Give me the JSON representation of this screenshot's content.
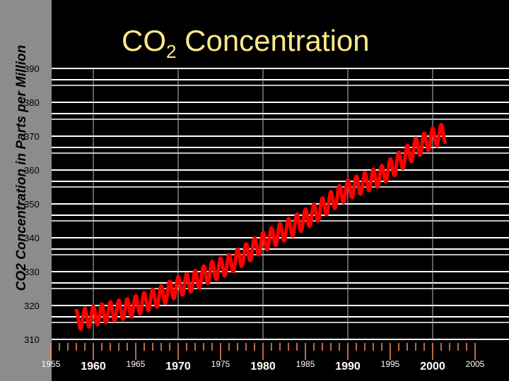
{
  "chart_data": {
    "type": "line",
    "title_main": "CO",
    "title_sub": "2",
    "title_rest": " Concentration",
    "ylabel": "CO2 Concentration in Parts per Million",
    "xlabel": "",
    "ylim": [
      310,
      390
    ],
    "xlim": [
      1955,
      2005
    ],
    "y_ticks": [
      "390",
      "380",
      "370",
      "360",
      "350",
      "340",
      "330",
      "320",
      "310"
    ],
    "x_ticks_major": [
      "1960",
      "1970",
      "1980",
      "1990",
      "2000"
    ],
    "x_ticks_minor": [
      "1955",
      "1965",
      "1975",
      "1985",
      "1995",
      "2005"
    ],
    "grid": true,
    "line_color": "#ff0000",
    "background": "#000000",
    "gridline_color": "#ffffff",
    "title_color": "#ffe98a",
    "series": [
      {
        "seasonal_amplitude": 2.9,
        "x": [
          1958,
          1960,
          1962,
          1964,
          1966,
          1968,
          1970,
          1972,
          1974,
          1976,
          1978,
          1980,
          1982,
          1984,
          1986,
          1988,
          1990,
          1992,
          1994,
          1996,
          1998,
          2000,
          2001.5
        ],
        "y": [
          315.6,
          316.9,
          318.2,
          319.1,
          320.9,
          322.9,
          325.6,
          327.4,
          330.1,
          332.1,
          335.3,
          338.7,
          341.3,
          344.1,
          347.0,
          350.7,
          354.2,
          356.3,
          358.4,
          362.3,
          366.5,
          369.5,
          371.0
        ]
      }
    ]
  }
}
